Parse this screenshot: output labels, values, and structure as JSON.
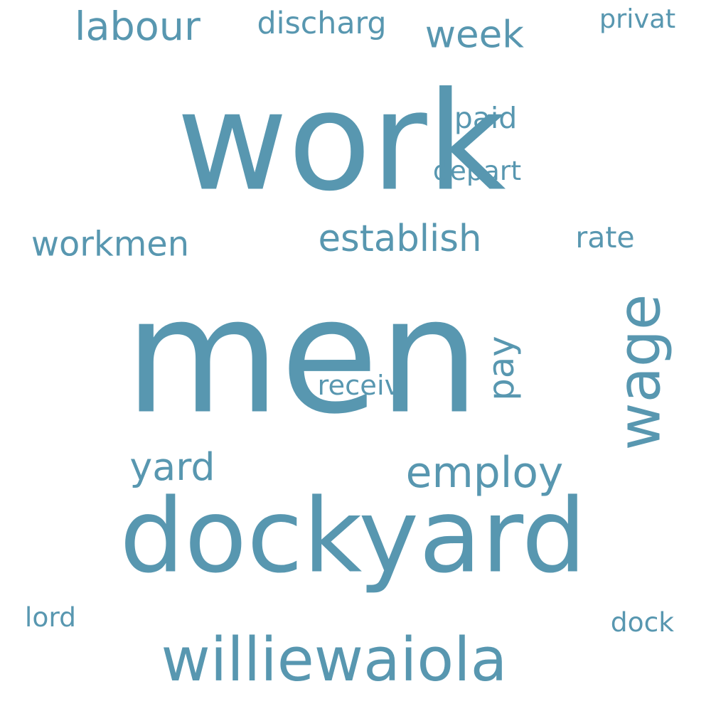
{
  "word_cloud": {
    "color": "#5897b0",
    "words": [
      {
        "text": "work",
        "name": "word-work"
      },
      {
        "text": "men",
        "name": "word-men"
      },
      {
        "text": "dockyard",
        "name": "word-dockyard"
      },
      {
        "text": "williewaiola",
        "name": "word-williewaiola"
      },
      {
        "text": "wage",
        "name": "word-wage"
      },
      {
        "text": "labour",
        "name": "word-labour"
      },
      {
        "text": "discharg",
        "name": "word-discharg"
      },
      {
        "text": "week",
        "name": "word-week"
      },
      {
        "text": "privat",
        "name": "word-privat"
      },
      {
        "text": "paid",
        "name": "word-paid"
      },
      {
        "text": "depart",
        "name": "word-depart"
      },
      {
        "text": "workmen",
        "name": "word-workmen"
      },
      {
        "text": "establish",
        "name": "word-establish"
      },
      {
        "text": "rate",
        "name": "word-rate"
      },
      {
        "text": "pay",
        "name": "word-pay"
      },
      {
        "text": "receiv",
        "name": "word-receiv"
      },
      {
        "text": "yard",
        "name": "word-yard"
      },
      {
        "text": "employ",
        "name": "word-employ"
      },
      {
        "text": "lord",
        "name": "word-lord"
      },
      {
        "text": "dock",
        "name": "word-dock"
      }
    ]
  }
}
